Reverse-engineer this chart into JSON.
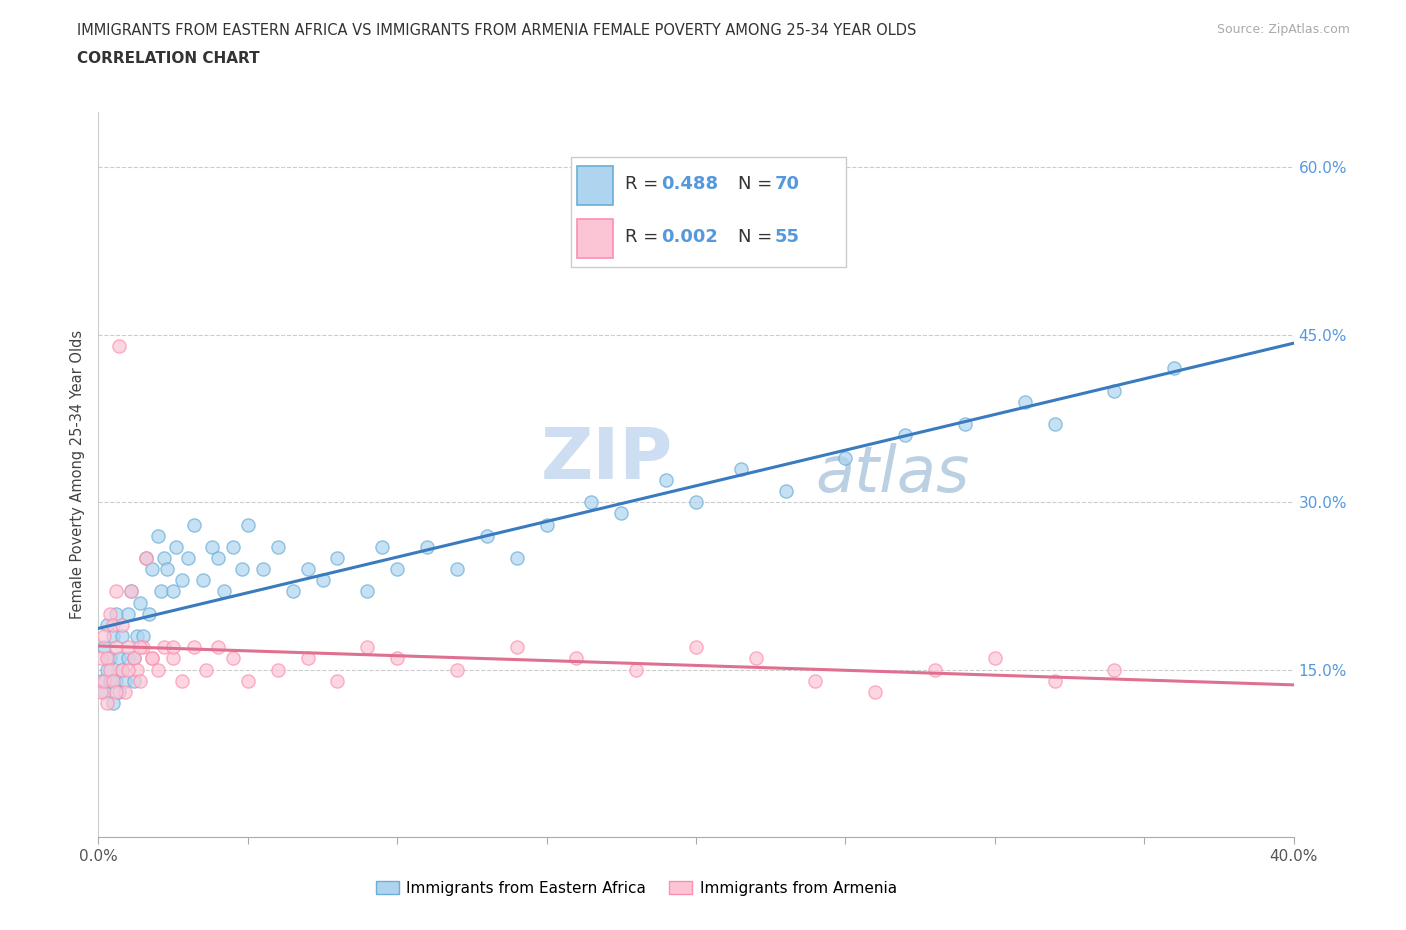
{
  "title_line1": "IMMIGRANTS FROM EASTERN AFRICA VS IMMIGRANTS FROM ARMENIA FEMALE POVERTY AMONG 25-34 YEAR OLDS",
  "title_line2": "CORRELATION CHART",
  "source": "Source: ZipAtlas.com",
  "ylabel": "Female Poverty Among 25-34 Year Olds",
  "xlim": [
    0.0,
    0.4
  ],
  "ylim": [
    0.0,
    0.65
  ],
  "x_ticks": [
    0.0,
    0.05,
    0.1,
    0.15,
    0.2,
    0.25,
    0.3,
    0.35,
    0.4
  ],
  "y_ticks": [
    0.0,
    0.15,
    0.3,
    0.45,
    0.6
  ],
  "y_tick_labels_right": [
    "",
    "15.0%",
    "30.0%",
    "45.0%",
    "60.0%"
  ],
  "color_ea": "#6baed6",
  "color_arm": "#fc8faf",
  "color_ea_fill": "#afd4f0",
  "color_arm_fill": "#fcc5d5",
  "line_ea": "#3a7bbf",
  "line_arm": "#e07090",
  "r_ea": 0.488,
  "n_ea": 70,
  "r_arm": 0.002,
  "n_arm": 55,
  "legend_label_1": "Immigrants from Eastern Africa",
  "legend_label_2": "Immigrants from Armenia",
  "watermark_zip": "ZIP",
  "watermark_atlas": "atlas",
  "ea_x": [
    0.001,
    0.002,
    0.002,
    0.003,
    0.003,
    0.004,
    0.004,
    0.005,
    0.005,
    0.006,
    0.006,
    0.007,
    0.007,
    0.008,
    0.008,
    0.009,
    0.01,
    0.01,
    0.011,
    0.012,
    0.012,
    0.013,
    0.014,
    0.015,
    0.016,
    0.017,
    0.018,
    0.02,
    0.021,
    0.022,
    0.023,
    0.025,
    0.026,
    0.028,
    0.03,
    0.032,
    0.035,
    0.038,
    0.04,
    0.042,
    0.045,
    0.048,
    0.05,
    0.055,
    0.06,
    0.065,
    0.07,
    0.075,
    0.08,
    0.09,
    0.095,
    0.1,
    0.11,
    0.12,
    0.13,
    0.14,
    0.15,
    0.165,
    0.175,
    0.19,
    0.2,
    0.215,
    0.23,
    0.25,
    0.27,
    0.29,
    0.31,
    0.32,
    0.34,
    0.36
  ],
  "ea_y": [
    0.14,
    0.13,
    0.17,
    0.15,
    0.19,
    0.14,
    0.16,
    0.12,
    0.18,
    0.14,
    0.2,
    0.13,
    0.16,
    0.15,
    0.18,
    0.14,
    0.16,
    0.2,
    0.22,
    0.16,
    0.14,
    0.18,
    0.21,
    0.18,
    0.25,
    0.2,
    0.24,
    0.27,
    0.22,
    0.25,
    0.24,
    0.22,
    0.26,
    0.23,
    0.25,
    0.28,
    0.23,
    0.26,
    0.25,
    0.22,
    0.26,
    0.24,
    0.28,
    0.24,
    0.26,
    0.22,
    0.24,
    0.23,
    0.25,
    0.22,
    0.26,
    0.24,
    0.26,
    0.24,
    0.27,
    0.25,
    0.28,
    0.3,
    0.29,
    0.32,
    0.3,
    0.33,
    0.31,
    0.34,
    0.36,
    0.37,
    0.39,
    0.37,
    0.4,
    0.42
  ],
  "arm_x": [
    0.001,
    0.001,
    0.002,
    0.002,
    0.003,
    0.003,
    0.004,
    0.004,
    0.005,
    0.005,
    0.006,
    0.006,
    0.007,
    0.008,
    0.008,
    0.009,
    0.01,
    0.011,
    0.012,
    0.013,
    0.014,
    0.015,
    0.016,
    0.018,
    0.02,
    0.022,
    0.025,
    0.028,
    0.032,
    0.036,
    0.04,
    0.045,
    0.05,
    0.06,
    0.07,
    0.08,
    0.09,
    0.1,
    0.12,
    0.14,
    0.16,
    0.18,
    0.2,
    0.22,
    0.24,
    0.26,
    0.28,
    0.3,
    0.32,
    0.34,
    0.006,
    0.01,
    0.014,
    0.018,
    0.025
  ],
  "arm_y": [
    0.13,
    0.16,
    0.14,
    0.18,
    0.12,
    0.16,
    0.2,
    0.15,
    0.19,
    0.14,
    0.17,
    0.22,
    0.44,
    0.15,
    0.19,
    0.13,
    0.17,
    0.22,
    0.16,
    0.15,
    0.14,
    0.17,
    0.25,
    0.16,
    0.15,
    0.17,
    0.16,
    0.14,
    0.17,
    0.15,
    0.17,
    0.16,
    0.14,
    0.15,
    0.16,
    0.14,
    0.17,
    0.16,
    0.15,
    0.17,
    0.16,
    0.15,
    0.17,
    0.16,
    0.14,
    0.13,
    0.15,
    0.16,
    0.14,
    0.15,
    0.13,
    0.15,
    0.17,
    0.16,
    0.17
  ]
}
